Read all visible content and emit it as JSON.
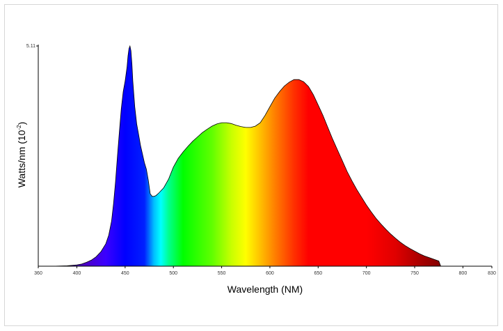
{
  "chart_data": {
    "type": "area",
    "xlabel": "Wavelength (NM)",
    "ylabel_main": "Watts/nm (10",
    "ylabel_exp": "-2",
    "ylabel_close": ")",
    "xlim": [
      360,
      830
    ],
    "ylim": [
      0,
      5.11
    ],
    "x_ticks": [
      360,
      400,
      450,
      500,
      550,
      600,
      650,
      700,
      750,
      800,
      830
    ],
    "y_ticks": [
      5.11
    ],
    "fill": "visible-spectrum gradient",
    "outline_color": "#000000",
    "series": [
      {
        "x": [
          375,
          390,
          400,
          405,
          410,
          415,
          420,
          425,
          430,
          433,
          436,
          438,
          440,
          442,
          444,
          446,
          448,
          450,
          452,
          453,
          454,
          455,
          456,
          457,
          458,
          460,
          462,
          464,
          466,
          468,
          470,
          472,
          474,
          476,
          478,
          480,
          482,
          485,
          490,
          495,
          500,
          505,
          510,
          515,
          520,
          525,
          530,
          535,
          540,
          545,
          550,
          555,
          560,
          565,
          570,
          575,
          580,
          585,
          590,
          595,
          600,
          605,
          610,
          615,
          620,
          625,
          630,
          635,
          640,
          645,
          650,
          655,
          660,
          665,
          670,
          675,
          680,
          685,
          690,
          695,
          700,
          705,
          710,
          715,
          720,
          725,
          730,
          735,
          740,
          745,
          750,
          755,
          760,
          765,
          770,
          775,
          777
        ],
        "y": [
          0.0,
          0.01,
          0.03,
          0.05,
          0.09,
          0.14,
          0.22,
          0.34,
          0.52,
          0.72,
          1.05,
          1.45,
          1.95,
          2.55,
          3.1,
          3.65,
          4.05,
          4.3,
          4.62,
          4.88,
          5.05,
          5.11,
          5.0,
          4.7,
          4.3,
          3.7,
          3.3,
          3.05,
          2.8,
          2.6,
          2.4,
          2.25,
          2.0,
          1.68,
          1.62,
          1.62,
          1.64,
          1.7,
          1.82,
          2.02,
          2.3,
          2.5,
          2.65,
          2.78,
          2.9,
          3.0,
          3.1,
          3.18,
          3.25,
          3.3,
          3.33,
          3.33,
          3.31,
          3.27,
          3.24,
          3.22,
          3.22,
          3.25,
          3.33,
          3.5,
          3.7,
          3.9,
          4.05,
          4.18,
          4.27,
          4.33,
          4.33,
          4.28,
          4.17,
          3.98,
          3.74,
          3.5,
          3.22,
          2.95,
          2.7,
          2.45,
          2.2,
          1.98,
          1.78,
          1.6,
          1.42,
          1.26,
          1.11,
          0.98,
          0.86,
          0.75,
          0.65,
          0.56,
          0.48,
          0.41,
          0.35,
          0.29,
          0.24,
          0.2,
          0.16,
          0.12,
          0.0
        ]
      }
    ]
  }
}
